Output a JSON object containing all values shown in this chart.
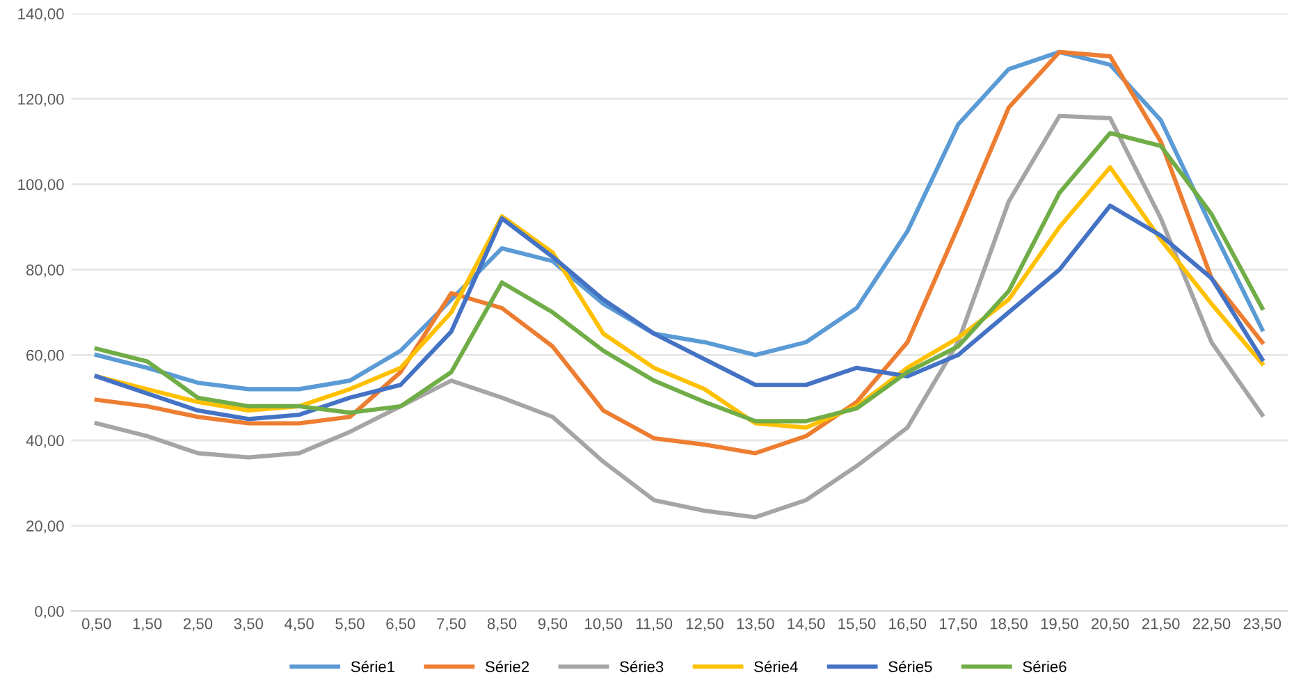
{
  "chart_data": {
    "type": "line",
    "categories": [
      "0,50",
      "1,50",
      "2,50",
      "3,50",
      "4,50",
      "5,50",
      "6,50",
      "7,50",
      "8,50",
      "9,50",
      "10,50",
      "11,50",
      "12,50",
      "13,50",
      "14,50",
      "15,50",
      "16,50",
      "17,50",
      "18,50",
      "19,50",
      "20,50",
      "21,50",
      "22,50",
      "23,50"
    ],
    "series": [
      {
        "name": "Série1",
        "color": "#5b9bd5",
        "values": [
          60,
          57,
          53.5,
          52,
          52,
          54,
          61,
          73,
          85,
          82,
          72,
          65,
          63,
          60,
          63,
          71,
          89,
          114,
          127,
          131,
          128,
          115,
          90,
          66
        ]
      },
      {
        "name": "Série2",
        "color": "#ed7d31",
        "values": [
          49.5,
          48,
          45.5,
          44,
          44,
          45.5,
          56,
          74.5,
          71,
          62,
          47,
          40.5,
          39,
          37,
          41,
          49,
          63,
          90,
          118,
          131,
          130,
          110,
          78,
          63
        ]
      },
      {
        "name": "Série3",
        "color": "#a5a5a5",
        "values": [
          44,
          41,
          37,
          36,
          37,
          42,
          48,
          54,
          50,
          45.5,
          35,
          26,
          23.5,
          22,
          26,
          34,
          43,
          63,
          96,
          116,
          115.5,
          92,
          63,
          46
        ]
      },
      {
        "name": "Série4",
        "color": "#ffc000",
        "values": [
          55,
          52,
          49,
          47,
          48,
          52,
          57,
          70,
          92.5,
          84,
          65,
          57,
          52,
          44,
          43,
          48,
          57,
          64,
          73,
          90,
          104,
          87,
          72,
          58
        ]
      },
      {
        "name": "Série5",
        "color": "#4472c4",
        "values": [
          55,
          51,
          47,
          45,
          46,
          50,
          53,
          65.5,
          92,
          83,
          73,
          65,
          59,
          53,
          53,
          57,
          55,
          60,
          70,
          80,
          95,
          88,
          78,
          59
        ]
      },
      {
        "name": "Série6",
        "color": "#70ad47",
        "values": [
          61.5,
          58.5,
          50,
          48,
          48,
          46.5,
          48,
          56,
          77,
          70,
          61,
          54,
          49,
          44.5,
          44.5,
          47.5,
          56,
          62,
          75,
          98,
          112,
          109,
          93,
          71
        ]
      }
    ],
    "ylim": [
      0,
      140
    ],
    "yticks": [
      {
        "value": 0,
        "label": "0,00"
      },
      {
        "value": 20,
        "label": "20,00"
      },
      {
        "value": 40,
        "label": "40,00"
      },
      {
        "value": 60,
        "label": "60,00"
      },
      {
        "value": 80,
        "label": "80,00"
      },
      {
        "value": 100,
        "label": "100,00"
      },
      {
        "value": 120,
        "label": "120,00"
      },
      {
        "value": 140,
        "label": "140,00"
      }
    ],
    "grid": "y",
    "legend": "bottom",
    "marker": "none",
    "line_style": "solid"
  }
}
